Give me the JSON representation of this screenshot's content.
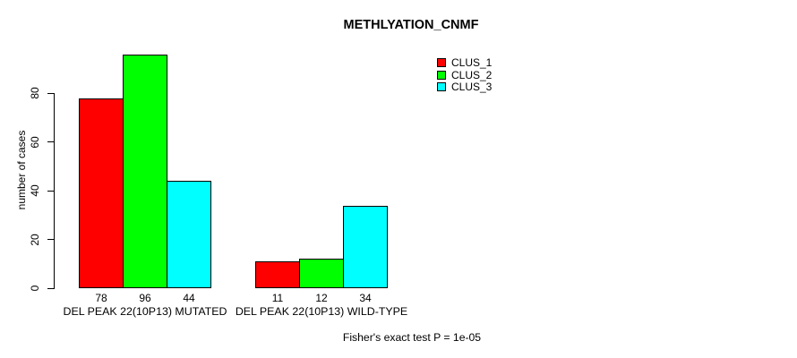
{
  "title": "METHLYATION_CNMF",
  "y_axis_label": "number of cases",
  "footer_note": "Fisher's exact test P = 1e-05",
  "colors": {
    "clus_1": "#FF0000",
    "clus_2": "#00FF00",
    "clus_3": "#00FFFF",
    "axis": "#000000",
    "background": "#FFFFFF"
  },
  "legend": {
    "items": [
      {
        "label": "CLUS_1",
        "color": "#FF0000"
      },
      {
        "label": "CLUS_2",
        "color": "#00FF00"
      },
      {
        "label": "CLUS_3",
        "color": "#00FFFF"
      }
    ]
  },
  "chart_data": {
    "type": "bar",
    "title": "METHLYATION_CNMF",
    "xlabel": "",
    "ylabel": "number of cases",
    "categories": [
      "DEL PEAK 22(10P13) MUTATED",
      "DEL PEAK 22(10P13) WILD-TYPE"
    ],
    "series": [
      {
        "name": "CLUS_1",
        "color": "#FF0000",
        "values": [
          78,
          11
        ]
      },
      {
        "name": "CLUS_2",
        "color": "#00FF00",
        "values": [
          96,
          12
        ]
      },
      {
        "name": "CLUS_3",
        "color": "#00FFFF",
        "values": [
          44,
          34
        ]
      }
    ],
    "bar_value_labels": [
      [
        78,
        96,
        44
      ],
      [
        11,
        12,
        34
      ]
    ],
    "yticks": [
      0,
      20,
      40,
      60,
      80
    ],
    "ylim": [
      0,
      96
    ],
    "grid": false,
    "legend_position": "top-right",
    "annotation": "Fisher's exact test P = 1e-05"
  }
}
